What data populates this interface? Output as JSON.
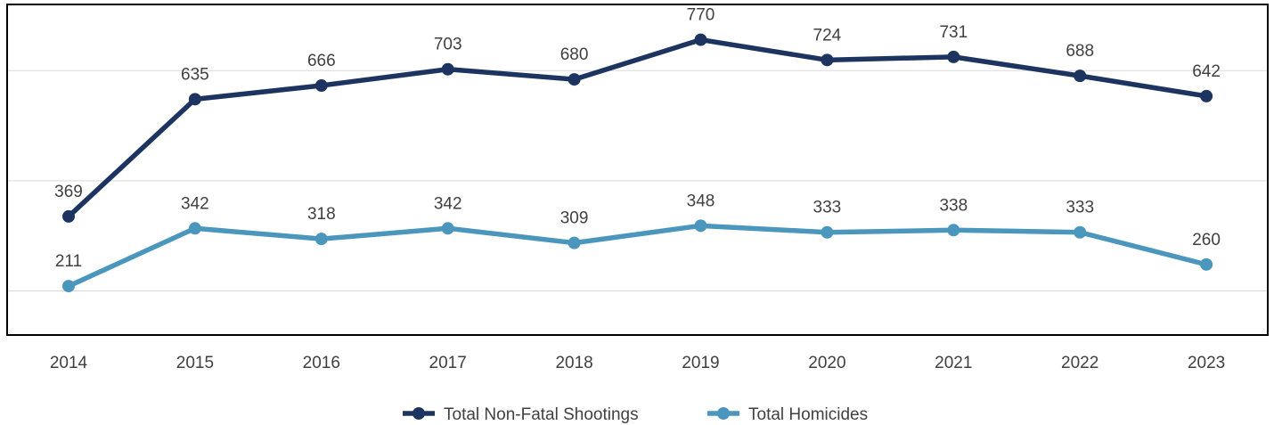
{
  "chart_data": {
    "type": "line",
    "title": "",
    "xlabel": "",
    "ylabel": "",
    "categories": [
      "2014",
      "2015",
      "2016",
      "2017",
      "2018",
      "2019",
      "2020",
      "2021",
      "2022",
      "2023"
    ],
    "ylim": [
      100,
      850
    ],
    "grid": true,
    "legend_position": "bottom-center",
    "series": [
      {
        "name": "Total Non-Fatal Shootings",
        "values": [
          369,
          635,
          666,
          703,
          680,
          770,
          724,
          731,
          688,
          642
        ],
        "color": "#1d3461"
      },
      {
        "name": "Total Homicides",
        "values": [
          211,
          342,
          318,
          342,
          309,
          348,
          333,
          338,
          333,
          260
        ],
        "color": "#4a96bd"
      }
    ]
  }
}
